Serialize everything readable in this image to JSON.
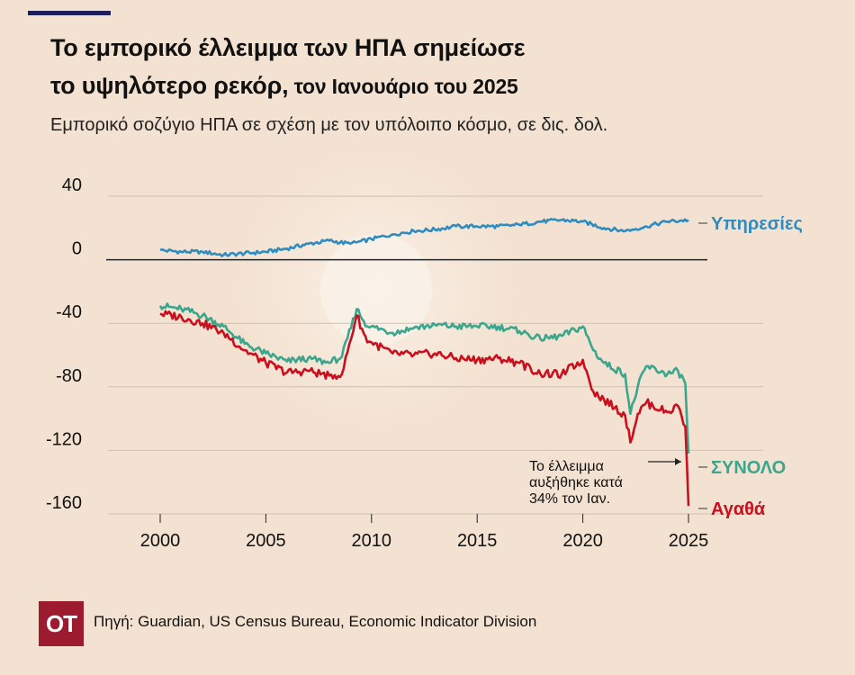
{
  "header": {
    "title_line1": "Το εμπορικό έλλειμμα των ΗΠΑ σημείωσε",
    "title_line2_main": "το υψηλότερο ρεκόρ,",
    "title_line2_tail": " τον Ιανουάριο του 2025",
    "subtitle": "Εμπορικό σοζύγιο ΗΠΑ σε σχέση με τον υπόλοιπο κόσμο, σε δις. δολ."
  },
  "colors": {
    "background": "#f3e2d1",
    "services": "#2e8cc0",
    "total": "#3ba68c",
    "goods": "#c8101f",
    "accent_rule": "#1d1f58",
    "logo_bg": "#9c1b2f"
  },
  "chart_data": {
    "type": "line",
    "title": "",
    "xlabel": "",
    "ylabel": "",
    "x_range": [
      1996.5,
      2026.5
    ],
    "y_range": [
      -162,
      48
    ],
    "yticks": [
      40,
      0,
      -40,
      -80,
      -120,
      -160
    ],
    "xticks": [
      2000,
      2005,
      2010,
      2015,
      2020,
      2025
    ],
    "grid": "horizontal",
    "zero_line": true,
    "series": [
      {
        "name": "Υπηρεσίες",
        "color_key": "services",
        "points": [
          [
            2000,
            6
          ],
          [
            2001,
            5
          ],
          [
            2002,
            5
          ],
          [
            2003,
            3
          ],
          [
            2004,
            4
          ],
          [
            2005,
            5
          ],
          [
            2006,
            7
          ],
          [
            2007,
            10
          ],
          [
            2008,
            12
          ],
          [
            2009,
            10
          ],
          [
            2010,
            13
          ],
          [
            2011,
            16
          ],
          [
            2012,
            18
          ],
          [
            2013,
            19
          ],
          [
            2014,
            21
          ],
          [
            2015,
            21
          ],
          [
            2016,
            21
          ],
          [
            2017,
            22
          ],
          [
            2018,
            24
          ],
          [
            2019,
            25
          ],
          [
            2020,
            24
          ],
          [
            2021,
            20
          ],
          [
            2022,
            18
          ],
          [
            2023,
            21
          ],
          [
            2024,
            24
          ],
          [
            2025,
            25
          ]
        ]
      },
      {
        "name": "ΣΥΝΟΛΟ",
        "color_key": "total",
        "points": [
          [
            2000,
            -29
          ],
          [
            2001,
            -31
          ],
          [
            2002,
            -35
          ],
          [
            2003,
            -42
          ],
          [
            2004,
            -53
          ],
          [
            2005,
            -59
          ],
          [
            2006,
            -64
          ],
          [
            2007,
            -62
          ],
          [
            2008,
            -65
          ],
          [
            2008.6,
            -61
          ],
          [
            2009.3,
            -31
          ],
          [
            2009.8,
            -42
          ],
          [
            2010,
            -42
          ],
          [
            2011,
            -46
          ],
          [
            2012,
            -43
          ],
          [
            2013,
            -41
          ],
          [
            2014,
            -42
          ],
          [
            2015,
            -42
          ],
          [
            2016,
            -42
          ],
          [
            2017,
            -45
          ],
          [
            2018,
            -50
          ],
          [
            2019,
            -48
          ],
          [
            2020,
            -42
          ],
          [
            2020.5,
            -57
          ],
          [
            2021,
            -65
          ],
          [
            2022,
            -72
          ],
          [
            2022.25,
            -97
          ],
          [
            2022.6,
            -80
          ],
          [
            2023,
            -67
          ],
          [
            2024,
            -72
          ],
          [
            2024.5,
            -70
          ],
          [
            2024.85,
            -78
          ],
          [
            2025,
            -122
          ]
        ]
      },
      {
        "name": "Αγαθά",
        "color_key": "goods",
        "points": [
          [
            2000,
            -34
          ],
          [
            2001,
            -36
          ],
          [
            2002,
            -40
          ],
          [
            2003,
            -46
          ],
          [
            2004,
            -57
          ],
          [
            2005,
            -65
          ],
          [
            2006,
            -71
          ],
          [
            2007,
            -70
          ],
          [
            2008,
            -73
          ],
          [
            2008.6,
            -72
          ],
          [
            2009.3,
            -35
          ],
          [
            2009.8,
            -52
          ],
          [
            2010,
            -52
          ],
          [
            2011,
            -59
          ],
          [
            2012,
            -60
          ],
          [
            2013,
            -59
          ],
          [
            2014,
            -62
          ],
          [
            2015,
            -63
          ],
          [
            2016,
            -62
          ],
          [
            2017,
            -65
          ],
          [
            2018,
            -72
          ],
          [
            2019,
            -72
          ],
          [
            2020,
            -63
          ],
          [
            2020.5,
            -83
          ],
          [
            2021,
            -88
          ],
          [
            2022,
            -98
          ],
          [
            2022.25,
            -115
          ],
          [
            2022.6,
            -97
          ],
          [
            2023,
            -90
          ],
          [
            2024,
            -96
          ],
          [
            2024.5,
            -92
          ],
          [
            2024.85,
            -105
          ],
          [
            2025,
            -155
          ]
        ]
      }
    ],
    "annotation": {
      "lines": [
        "Το έλλειμμα",
        "αυξήθηκε κατά",
        "34% τον Ιαν."
      ]
    }
  },
  "footer": {
    "logo_text": "OT",
    "source": "Πηγή: Guardian, US Census Bureau, Economic Indicator Division"
  }
}
